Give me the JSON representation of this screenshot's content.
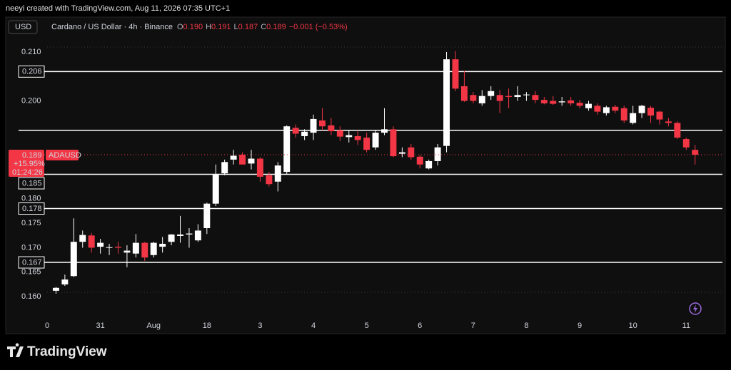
{
  "caption": "neeyi created with TradingView.com, Aug 11, 2026 07:35 UTC+1",
  "toolbar": {
    "currency": "USD",
    "symbol": "Cardano / US Dollar · 4h · Binance",
    "ohlc": [
      {
        "key": "O",
        "value": "0.190"
      },
      {
        "key": "H",
        "value": "0.191"
      },
      {
        "key": "L",
        "value": "0.187"
      },
      {
        "key": "C",
        "value": "0.189"
      }
    ],
    "change": "−0.001 (−0.53%)"
  },
  "footer": "TradingView",
  "chart_data": {
    "type": "candlestick",
    "x": [
      1,
      2,
      3,
      4,
      5,
      6,
      7,
      8,
      9,
      10,
      11,
      12,
      13,
      14,
      15,
      16,
      17,
      18,
      19,
      20,
      21,
      22,
      23,
      24,
      25,
      26,
      27,
      28,
      29,
      30,
      31,
      32,
      33,
      34,
      35,
      36,
      37,
      38,
      39,
      40,
      41,
      42,
      43,
      44,
      45,
      46,
      47,
      48,
      49,
      50,
      51,
      52,
      53,
      54,
      55,
      56,
      57,
      58,
      59,
      60,
      61,
      62,
      63,
      64,
      65,
      66,
      67,
      68,
      69,
      70,
      71,
      72,
      73
    ],
    "open": [
      0.1612,
      0.1625,
      0.1642,
      0.1712,
      0.1725,
      0.1702,
      0.17,
      0.1702,
      0.169,
      0.1688,
      0.171,
      0.1685,
      0.1702,
      0.1712,
      0.1724,
      0.1727,
      0.1715,
      0.174,
      0.179,
      0.1852,
      0.188,
      0.189,
      0.1872,
      0.1882,
      0.1848,
      0.1835,
      0.1855,
      0.1945,
      0.1928,
      0.1935,
      0.196,
      0.195,
      0.194,
      0.1926,
      0.1928,
      0.1925,
      0.1905,
      0.1935,
      0.1942,
      0.1892,
      0.1905,
      0.1886,
      0.1862,
      0.1877,
      0.1908,
      0.2085,
      0.203,
      0.2012,
      0.1995,
      0.201,
      0.2012,
      0.201,
      0.2008,
      0.2012,
      0.2012,
      0.2002,
      0.2,
      0.1997,
      0.2001,
      0.1996,
      0.1985,
      0.199,
      0.1975,
      0.1988,
      0.1985,
      0.1955,
      0.1975,
      0.1986,
      0.1978,
      0.1958,
      0.1955,
      0.1922,
      0.19
    ],
    "high": [
      0.162,
      0.1645,
      0.176,
      0.1735,
      0.173,
      0.1718,
      0.1708,
      0.1712,
      0.1705,
      0.1728,
      0.1712,
      0.1712,
      0.1722,
      0.1728,
      0.1765,
      0.174,
      0.1748,
      0.1792,
      0.187,
      0.188,
      0.19,
      0.1895,
      0.19,
      0.1885,
      0.1855,
      0.1875,
      0.195,
      0.1952,
      0.1942,
      0.1972,
      0.1985,
      0.1965,
      0.1948,
      0.194,
      0.194,
      0.1935,
      0.194,
      0.1985,
      0.1948,
      0.1905,
      0.1912,
      0.189,
      0.188,
      0.1912,
      0.21,
      0.2102,
      0.2062,
      0.2018,
      0.2022,
      0.203,
      0.2022,
      0.2025,
      0.203,
      0.2018,
      0.202,
      0.2008,
      0.201,
      0.2008,
      0.2008,
      0.2002,
      0.2,
      0.1995,
      0.199,
      0.1992,
      0.199,
      0.199,
      0.1992,
      0.199,
      0.198,
      0.1965,
      0.1958,
      0.1925,
      0.191
    ],
    "low": [
      0.1606,
      0.1622,
      0.164,
      0.17,
      0.169,
      0.1688,
      0.1685,
      0.1688,
      0.166,
      0.168,
      0.1673,
      0.168,
      0.169,
      0.1705,
      0.171,
      0.17,
      0.1712,
      0.1728,
      0.1785,
      0.1848,
      0.187,
      0.187,
      0.186,
      0.1835,
      0.1825,
      0.1815,
      0.185,
      0.1925,
      0.192,
      0.192,
      0.194,
      0.193,
      0.1918,
      0.1915,
      0.191,
      0.1895,
      0.19,
      0.193,
      0.1885,
      0.1885,
      0.188,
      0.1862,
      0.186,
      0.1868,
      0.1895,
      0.202,
      0.1998,
      0.1995,
      0.199,
      0.2002,
      0.1975,
      0.1985,
      0.2,
      0.2,
      0.1995,
      0.1993,
      0.1992,
      0.199,
      0.199,
      0.1985,
      0.198,
      0.1972,
      0.197,
      0.1975,
      0.1955,
      0.1952,
      0.1965,
      0.1955,
      0.1952,
      0.1948,
      0.1922,
      0.19,
      0.187
    ],
    "close": [
      0.1618,
      0.1635,
      0.1712,
      0.1726,
      0.17,
      0.171,
      0.1701,
      0.17,
      0.1694,
      0.171,
      0.168,
      0.171,
      0.1708,
      0.1727,
      0.1727,
      0.1729,
      0.1735,
      0.179,
      0.185,
      0.1875,
      0.1888,
      0.187,
      0.1882,
      0.1845,
      0.183,
      0.1868,
      0.1948,
      0.1933,
      0.1937,
      0.1963,
      0.1948,
      0.1938,
      0.1927,
      0.193,
      0.192,
      0.19,
      0.1935,
      0.1942,
      0.1887,
      0.1895,
      0.1885,
      0.187,
      0.1877,
      0.1905,
      0.2085,
      0.2025,
      0.2,
      0.2,
      0.201,
      0.202,
      0.2,
      0.2008,
      0.2012,
      0.2013,
      0.2002,
      0.1995,
      0.1994,
      0.1999,
      0.1995,
      0.199,
      0.1994,
      0.1978,
      0.1987,
      0.198,
      0.196,
      0.1975,
      0.199,
      0.197,
      0.1962,
      0.1955,
      0.1925,
      0.1905,
      0.189
    ],
    "up_color": "#ffffff",
    "down_color": "#f23645",
    "xlim": [
      0,
      76
    ],
    "xticks": [
      {
        "value": 0,
        "label": "0"
      },
      {
        "value": 6,
        "label": "31"
      },
      {
        "value": 12,
        "label": "Aug"
      },
      18,
      {
        "value": 24,
        "label": "3"
      },
      {
        "value": 30,
        "label": "4"
      },
      {
        "value": 36,
        "label": "5"
      },
      {
        "value": 42,
        "label": "6"
      },
      {
        "value": 48,
        "label": "7"
      },
      {
        "value": 54,
        "label": "8"
      },
      {
        "value": 60,
        "label": "9"
      },
      {
        "value": 66,
        "label": "10"
      },
      {
        "value": 72,
        "label": "11"
      }
    ],
    "ylim": [
      0.1555,
      0.211
    ],
    "yticks": [
      {
        "value": 0.21,
        "label": "0.210"
      },
      {
        "value": 0.2,
        "label": "0.200"
      },
      {
        "value": 0.18,
        "label": "0.180"
      },
      0.175,
      {
        "value": 0.17,
        "label": "0.170"
      },
      0.165,
      {
        "value": 0.16,
        "label": "0.160"
      }
    ],
    "levels": [
      0.206,
      0.194,
      0.185,
      0.178,
      0.167
    ],
    "last_price": 0.189,
    "last_change": "+15.95%",
    "countdown": "01:24:26",
    "symbol_tag": "ADAUSD"
  }
}
